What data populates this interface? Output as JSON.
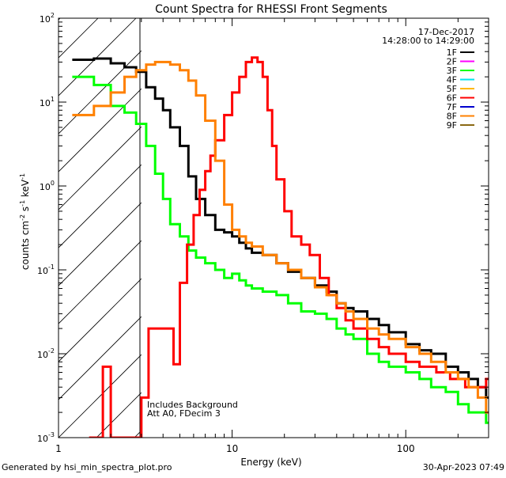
{
  "chart_data": {
    "type": "line",
    "title": "Count Spectra for RHESSI Front Segments",
    "xlabel": "Energy (keV)",
    "ylabel_main": "counts cm",
    "ylabel_exp1": "-2",
    "ylabel_mid": " s",
    "ylabel_exp2": "-1",
    "ylabel_end": " keV",
    "ylabel_exp3": "-1",
    "x_scale": "log",
    "y_scale": "log",
    "xlim": [
      1,
      300
    ],
    "ylim": [
      0.001,
      100
    ],
    "x_ticks": [
      {
        "value": 1,
        "label": "1"
      },
      {
        "value": 10,
        "label": "10"
      },
      {
        "value": 100,
        "label": "100"
      }
    ],
    "y_ticks": [
      {
        "value": 0.001,
        "base": "10",
        "exp": "-3"
      },
      {
        "value": 0.01,
        "base": "10",
        "exp": "-2"
      },
      {
        "value": 0.1,
        "base": "10",
        "exp": "-1"
      },
      {
        "value": 1,
        "base": "10",
        "exp": "0"
      },
      {
        "value": 10,
        "base": "10",
        "exp": "1"
      },
      {
        "value": 100,
        "base": "10",
        "exp": "2"
      }
    ],
    "date": "17-Dec-2017",
    "time_range": "14:28:00 to 14:29:00",
    "annotations": [
      "Includes Background",
      "Att A0, FDecim 3"
    ],
    "hatched_region": {
      "x_from": 1,
      "x_to": 3,
      "description": "below 3 keV excluded"
    },
    "legend": [
      {
        "name": "1F",
        "color": "#000000"
      },
      {
        "name": "2F",
        "color": "#ff00ff"
      },
      {
        "name": "3F",
        "color": "#00ff00"
      },
      {
        "name": "4F",
        "color": "#00e5ee"
      },
      {
        "name": "5F",
        "color": "#ffb800"
      },
      {
        "name": "6F",
        "color": "#ff0000"
      },
      {
        "name": "7F",
        "color": "#0000cd"
      },
      {
        "name": "8F",
        "color": "#ff8000"
      },
      {
        "name": "9F",
        "color": "#8b6914"
      }
    ],
    "series": [
      {
        "name": "1F",
        "color": "#000000",
        "step": true,
        "x": [
          1.2,
          1.6,
          2.0,
          2.4,
          2.8,
          3.2,
          3.6,
          4.0,
          4.4,
          5.0,
          5.6,
          6.2,
          7.0,
          8.0,
          9.0,
          10.0,
          11.0,
          12.0,
          13.0,
          15.0,
          18.0,
          21.0,
          25.0,
          30.0,
          35.0,
          40.0,
          45.0,
          50.0,
          60.0,
          70.0,
          80.0,
          100.0,
          120.0,
          140.0,
          170.0,
          200.0,
          230.0,
          260.0,
          290.0
        ],
        "y": [
          32,
          33,
          29,
          26,
          23,
          15,
          11,
          8.0,
          5.0,
          3.0,
          1.3,
          0.7,
          0.45,
          0.3,
          0.28,
          0.25,
          0.21,
          0.18,
          0.16,
          0.15,
          0.12,
          0.095,
          0.08,
          0.065,
          0.055,
          0.04,
          0.035,
          0.032,
          0.026,
          0.022,
          0.018,
          0.013,
          0.011,
          0.01,
          0.007,
          0.006,
          0.005,
          0.004,
          0.003
        ]
      },
      {
        "name": "3F",
        "color": "#00ff00",
        "step": true,
        "x": [
          1.2,
          1.6,
          2.0,
          2.4,
          2.8,
          3.2,
          3.6,
          4.0,
          4.4,
          5.0,
          5.6,
          6.2,
          7.0,
          8.0,
          9.0,
          10.0,
          11.0,
          12.0,
          13.0,
          15.0,
          18.0,
          21.0,
          25.0,
          30.0,
          35.0,
          40.0,
          45.0,
          50.0,
          60.0,
          70.0,
          80.0,
          100.0,
          120.0,
          140.0,
          170.0,
          200.0,
          230.0,
          260.0,
          290.0
        ],
        "y": [
          20,
          16,
          9.0,
          7.5,
          5.5,
          3.0,
          1.4,
          0.7,
          0.35,
          0.25,
          0.17,
          0.14,
          0.12,
          0.1,
          0.08,
          0.09,
          0.075,
          0.065,
          0.06,
          0.055,
          0.05,
          0.04,
          0.032,
          0.03,
          0.026,
          0.02,
          0.017,
          0.015,
          0.01,
          0.008,
          0.007,
          0.006,
          0.005,
          0.004,
          0.0035,
          0.0025,
          0.002,
          0.002,
          0.0015
        ]
      },
      {
        "name": "6F",
        "color": "#ff0000",
        "step": true,
        "x": [
          1.5,
          1.8,
          2.0,
          3.0,
          3.3,
          3.8,
          4.2,
          4.6,
          5.0,
          5.5,
          6.0,
          6.5,
          7.0,
          7.5,
          8.0,
          9.0,
          10.0,
          11.0,
          12.0,
          13.0,
          14.0,
          15.0,
          16.0,
          17.0,
          18.0,
          20.0,
          22.0,
          25.0,
          28.0,
          32.0,
          36.0,
          40.0,
          45.0,
          50.0,
          60.0,
          70.0,
          80.0,
          100.0,
          120.0,
          150.0,
          180.0,
          220.0,
          260.0,
          290.0
        ],
        "y": [
          0.001,
          0.007,
          0.001,
          0.003,
          0.02,
          0.02,
          0.02,
          0.0075,
          0.07,
          0.2,
          0.45,
          0.9,
          1.5,
          2.3,
          3.5,
          7.0,
          13.0,
          20.0,
          30.0,
          34.0,
          30.0,
          20.0,
          8.0,
          3.0,
          1.2,
          0.5,
          0.25,
          0.2,
          0.15,
          0.08,
          0.05,
          0.035,
          0.025,
          0.02,
          0.015,
          0.012,
          0.01,
          0.008,
          0.007,
          0.006,
          0.005,
          0.004,
          0.004,
          0.005
        ]
      },
      {
        "name": "8F",
        "color": "#ff8000",
        "step": true,
        "x": [
          1.2,
          1.6,
          2.0,
          2.4,
          2.8,
          3.2,
          3.6,
          4.0,
          4.4,
          5.0,
          5.6,
          6.2,
          7.0,
          8.0,
          9.0,
          10.0,
          11.0,
          12.0,
          13.0,
          15.0,
          18.0,
          21.0,
          25.0,
          30.0,
          35.0,
          40.0,
          45.0,
          50.0,
          60.0,
          70.0,
          80.0,
          100.0,
          120.0,
          140.0,
          170.0,
          200.0,
          230.0,
          260.0,
          290.0
        ],
        "y": [
          7.0,
          9.0,
          13.0,
          20.0,
          24.0,
          28.0,
          30.0,
          30.0,
          28.0,
          24.0,
          18.0,
          12.0,
          6.0,
          2.0,
          0.6,
          0.3,
          0.25,
          0.21,
          0.19,
          0.15,
          0.12,
          0.1,
          0.08,
          0.062,
          0.05,
          0.04,
          0.032,
          0.026,
          0.02,
          0.017,
          0.015,
          0.012,
          0.01,
          0.008,
          0.006,
          0.005,
          0.004,
          0.003,
          0.002
        ]
      }
    ]
  },
  "footer": {
    "left": "Generated by hsi_min_spectra_plot.pro",
    "right": "30-Apr-2023 07:49"
  }
}
